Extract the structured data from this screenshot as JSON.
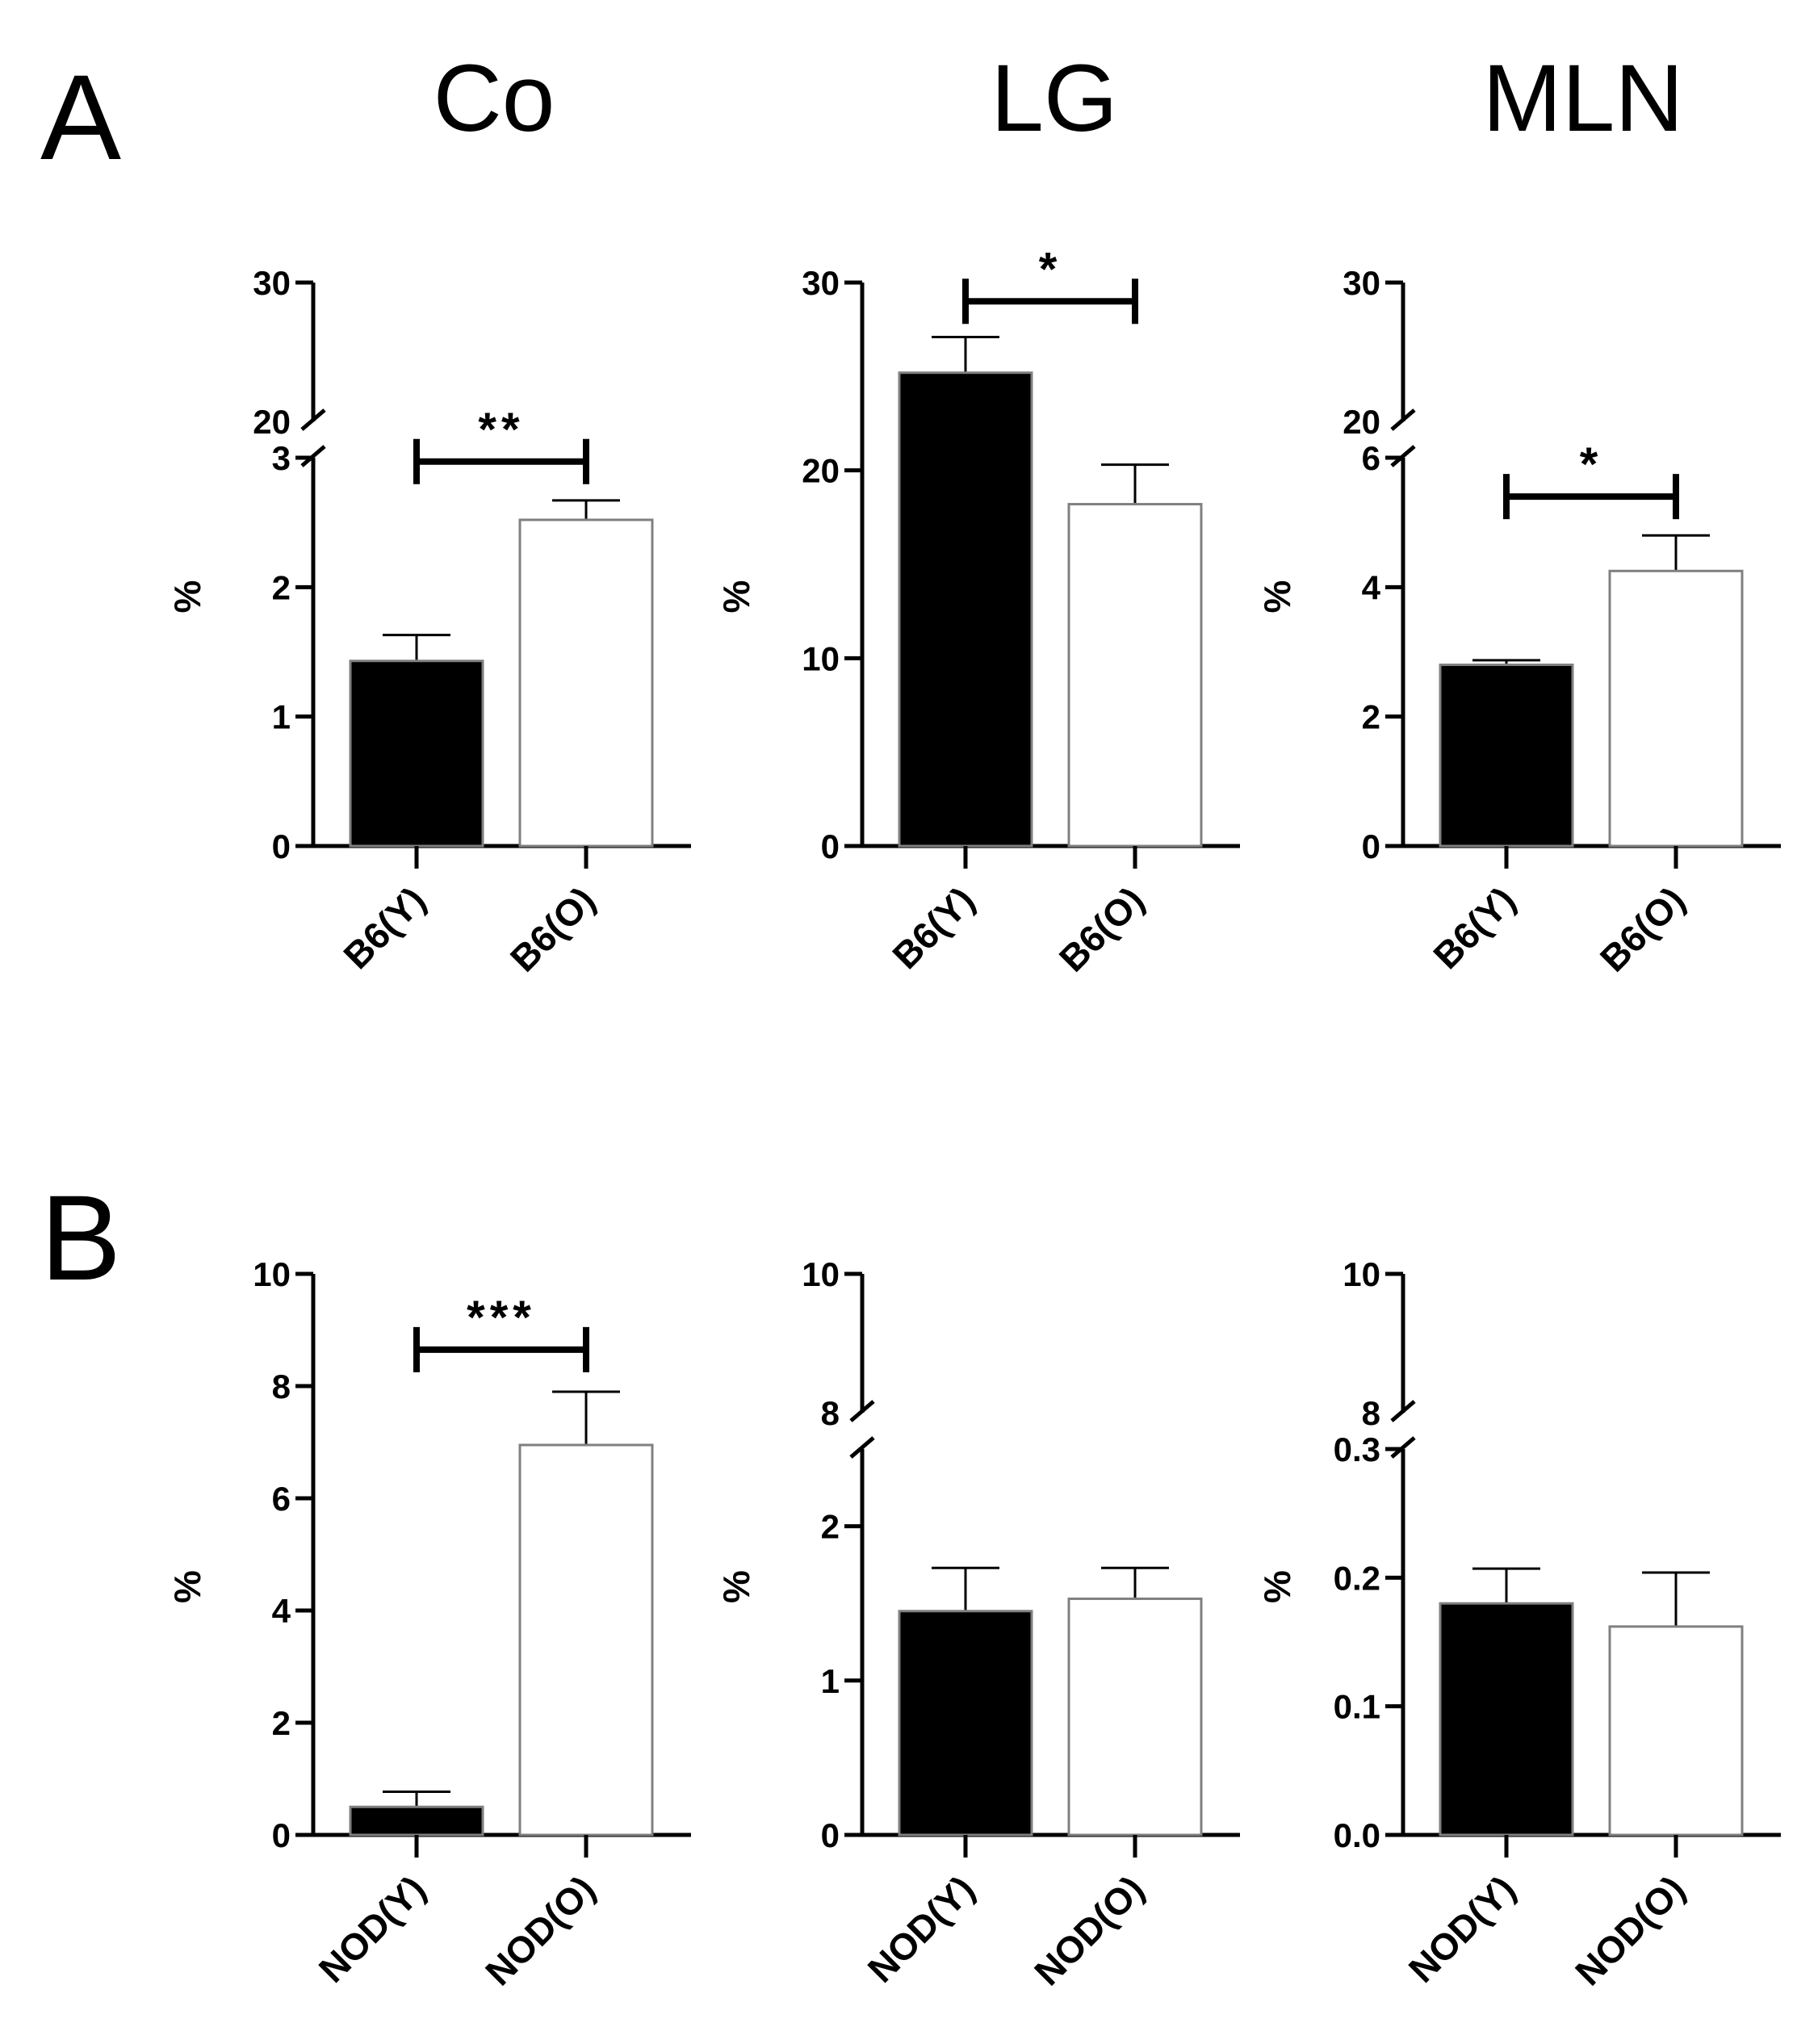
{
  "panel_labels": [
    "A",
    "B"
  ],
  "column_titles": [
    "Co",
    "LG",
    "MLN"
  ],
  "colors": {
    "axis": "#000000",
    "bar_y_fill": "#000000",
    "bar_o_fill": "#ffffff",
    "bar_stroke": "#808080"
  },
  "chart_data": [
    {
      "id": "A-Co",
      "type": "bar",
      "panel": "A",
      "title": "Co",
      "ylabel": "%",
      "categories": [
        "B6(Y)",
        "B6(O)"
      ],
      "values": [
        1.43,
        2.52
      ],
      "errors": [
        0.2,
        0.15
      ],
      "ylim": [
        0,
        30
      ],
      "yticks": [
        0,
        1,
        2,
        3
      ],
      "ytick_labels": [
        "0",
        "1",
        "2",
        "3"
      ],
      "axis_break": {
        "lower_top": 3,
        "upper_bottom": 20,
        "upper_top": 30,
        "upper_label": "30",
        "break_label": "20"
      },
      "significance": {
        "label": "**",
        "between": [
          0,
          1
        ],
        "y": 2.97
      }
    },
    {
      "id": "A-LG",
      "type": "bar",
      "panel": "A",
      "title": "LG",
      "ylabel": "%",
      "categories": [
        "B6(Y)",
        "B6(O)"
      ],
      "values": [
        25.2,
        18.2
      ],
      "errors": [
        1.9,
        2.1
      ],
      "ylim": [
        0,
        30
      ],
      "yticks": [
        0,
        10,
        20,
        30
      ],
      "ytick_labels": [
        "0",
        "10",
        "20",
        "30"
      ],
      "axis_break": null,
      "significance": {
        "label": "*",
        "between": [
          0,
          1
        ],
        "y": 29.0
      }
    },
    {
      "id": "A-MLN",
      "type": "bar",
      "panel": "A",
      "title": "MLN",
      "ylabel": "%",
      "categories": [
        "B6(Y)",
        "B6(O)"
      ],
      "values": [
        2.8,
        4.25
      ],
      "errors": [
        0.07,
        0.55
      ],
      "ylim": [
        0,
        30
      ],
      "yticks": [
        0,
        2,
        4,
        6
      ],
      "ytick_labels": [
        "0",
        "2",
        "4",
        "6"
      ],
      "axis_break": {
        "lower_top": 6,
        "upper_bottom": 20,
        "upper_top": 30,
        "upper_label": "30",
        "break_label": "20"
      },
      "significance": {
        "label": "*",
        "between": [
          0,
          1
        ],
        "y": 5.4
      }
    },
    {
      "id": "B-Co",
      "type": "bar",
      "panel": "B",
      "title": "",
      "ylabel": "%",
      "categories": [
        "NOD(Y)",
        "NOD(O)"
      ],
      "values": [
        0.5,
        6.95
      ],
      "errors": [
        0.27,
        0.95
      ],
      "ylim": [
        0,
        10
      ],
      "yticks": [
        0,
        2,
        4,
        6,
        8,
        10
      ],
      "ytick_labels": [
        "0",
        "2",
        "4",
        "6",
        "8",
        "10"
      ],
      "axis_break": null,
      "significance": {
        "label": "***",
        "between": [
          0,
          1
        ],
        "y": 8.65
      }
    },
    {
      "id": "B-LG",
      "type": "bar",
      "panel": "B",
      "title": "",
      "ylabel": "%",
      "categories": [
        "NOD(Y)",
        "NOD(O)"
      ],
      "values": [
        1.45,
        1.53
      ],
      "errors": [
        0.28,
        0.2
      ],
      "ylim": [
        0,
        10
      ],
      "yticks": [
        0,
        1,
        2
      ],
      "ytick_labels": [
        "0",
        "1",
        "2"
      ],
      "axis_break": {
        "lower_top": 2.5,
        "upper_bottom": 8,
        "upper_top": 10,
        "upper_label": "10",
        "break_label": "8"
      },
      "significance": null
    },
    {
      "id": "B-MLN",
      "type": "bar",
      "panel": "B",
      "title": "",
      "ylabel": "%",
      "categories": [
        "NOD(Y)",
        "NOD(O)"
      ],
      "values": [
        0.18,
        0.162
      ],
      "errors": [
        0.027,
        0.042
      ],
      "ylim": [
        0,
        10
      ],
      "yticks": [
        0,
        0.1,
        0.2,
        0.3
      ],
      "ytick_labels": [
        "0.0",
        "0.1",
        "0.2",
        "0.3"
      ],
      "axis_break": {
        "lower_top": 0.3,
        "upper_bottom": 8,
        "upper_top": 10,
        "upper_label": "10",
        "break_label": "8"
      },
      "significance": null
    }
  ]
}
